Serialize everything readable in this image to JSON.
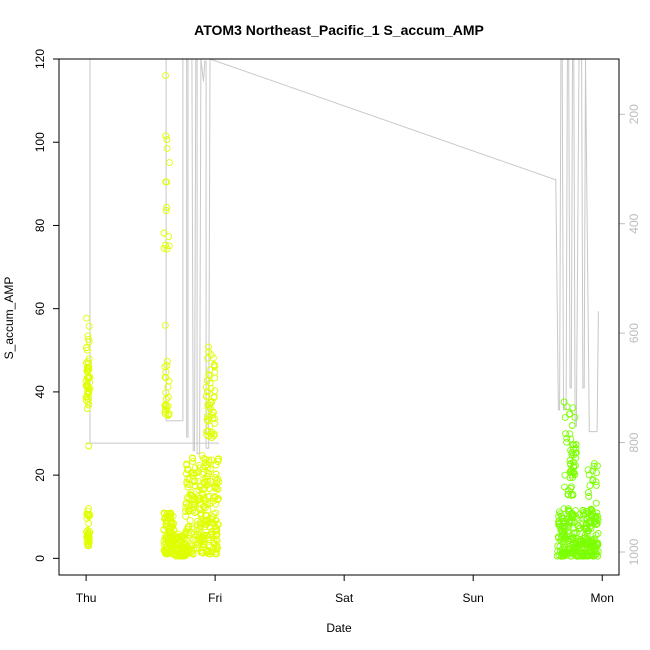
{
  "chart_data": {
    "type": "scatter",
    "title": "ATOM3 Northeast_Pacific_1 S_accum_AMP",
    "xlabel": "Date",
    "ylabel": "S_accum_AMP",
    "x_ticks": [
      "Thu",
      "Fri",
      "Sat",
      "Sun",
      "Mon"
    ],
    "x_range_days": [
      -0.21,
      4.13
    ],
    "ylim": [
      -4,
      120
    ],
    "y_ticks": [
      0,
      20,
      40,
      60,
      80,
      100,
      120
    ],
    "y2_ticks": [
      200,
      400,
      600,
      800,
      1000
    ],
    "y2_range": [
      1042,
      99
    ],
    "y2_reversed": true,
    "grid": false,
    "legend": "none",
    "colors": {
      "points_early": "#dfff00",
      "points_late": "#7cff00",
      "secondary_line": "#c8c8c8"
    },
    "point_clusters": [
      {
        "x": [
          0.0,
          0.03
        ],
        "y": [
          3,
          12
        ],
        "n": 35
      },
      {
        "x": [
          0.0,
          0.03
        ],
        "y": [
          36,
          48
        ],
        "n": 40
      },
      {
        "x": [
          0.0,
          0.03
        ],
        "y": [
          50,
          59
        ],
        "n": 8
      },
      {
        "x": [
          0.0,
          0.03
        ],
        "y": [
          27,
          27
        ],
        "n": 1
      },
      {
        "x": [
          0.6,
          0.68
        ],
        "y": [
          1,
          11
        ],
        "n": 90
      },
      {
        "x": [
          0.61,
          0.65
        ],
        "y": [
          34,
          49
        ],
        "n": 22
      },
      {
        "x": [
          0.6,
          0.65
        ],
        "y": [
          74,
          103
        ],
        "n": 14
      },
      {
        "x": [
          0.6,
          0.62
        ],
        "y": [
          116,
          116
        ],
        "n": 1
      },
      {
        "x": [
          0.61,
          0.62
        ],
        "y": [
          56,
          56
        ],
        "n": 1
      },
      {
        "x": [
          0.68,
          0.78
        ],
        "y": [
          0.5,
          6
        ],
        "n": 70
      },
      {
        "x": [
          0.77,
          1.03
        ],
        "y": [
          1,
          25
        ],
        "n": 260
      },
      {
        "x": [
          0.93,
          1.0
        ],
        "y": [
          29,
          52
        ],
        "n": 50
      },
      {
        "x": [
          3.65,
          3.97
        ],
        "y": [
          0.5,
          12
        ],
        "n": 260
      },
      {
        "x": [
          3.7,
          3.8
        ],
        "y": [
          15,
          38
        ],
        "n": 30
      },
      {
        "x": [
          3.75,
          3.8
        ],
        "y": [
          19,
          28
        ],
        "n": 25
      },
      {
        "x": [
          3.88,
          3.97
        ],
        "y": [
          13,
          25
        ],
        "n": 15
      }
    ],
    "secondary_line": {
      "x": [
        0.0,
        0.03,
        0.03,
        0.05,
        0.05,
        0.6,
        0.61,
        0.62,
        0.62,
        0.74,
        0.75,
        0.75,
        0.77,
        0.78,
        0.78,
        0.79,
        0.79,
        0.8,
        0.82,
        0.83,
        0.84,
        0.85,
        0.86,
        0.86,
        0.88,
        0.89,
        0.89,
        0.91,
        0.92,
        0.93,
        0.93,
        0.95,
        0.96,
        0.96,
        3.63,
        3.64,
        3.66,
        3.67,
        3.68,
        3.69,
        3.7,
        3.72,
        3.73,
        3.74,
        3.75,
        3.76,
        3.77,
        3.78,
        3.79,
        3.8,
        3.82,
        3.83,
        3.84,
        3.85,
        3.86,
        3.87,
        3.87,
        3.9,
        3.94,
        3.96,
        3.97
      ],
      "y": [
        801,
        801,
        99,
        99,
        99,
        99,
        99,
        99,
        760,
        760,
        760,
        99,
        99,
        100,
        790,
        790,
        99,
        99,
        99,
        815,
        815,
        99,
        99,
        820,
        820,
        99,
        99,
        140,
        103,
        103,
        810,
        810,
        99,
        99,
        319,
        319,
        740,
        740,
        99,
        99,
        740,
        740,
        99,
        99,
        700,
        700,
        99,
        99,
        770,
        770,
        99,
        99,
        99,
        700,
        700,
        99,
        99,
        780,
        780,
        780,
        560
      ]
    },
    "secondary_line_tail": {
      "x": [
        0.0,
        1.03
      ],
      "y": [
        801,
        801
      ]
    }
  }
}
